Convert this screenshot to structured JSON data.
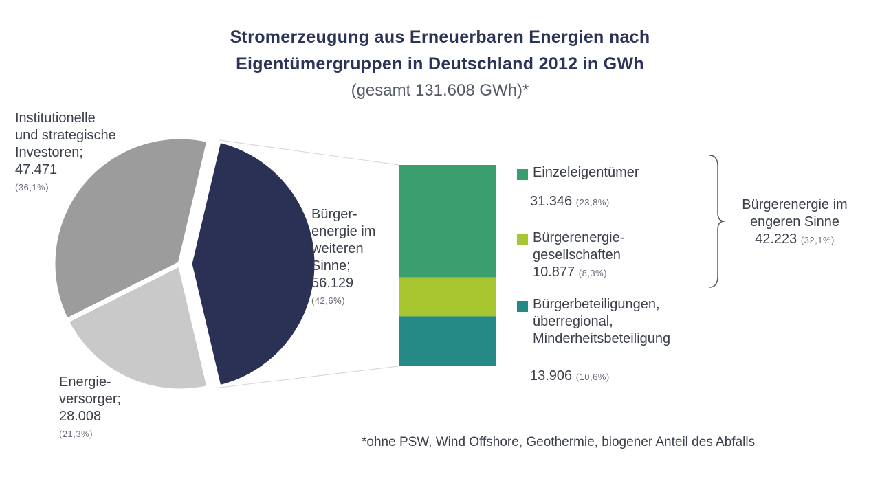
{
  "chart_data": {
    "type": "pie",
    "title_line1": "Stromerzeugung aus Erneuerbaren Energien nach",
    "title_line2": "Eigentümergruppen in Deutschland 2012 in GWh",
    "subtitle": "(gesamt 131.608 GWh)*",
    "footnote": "*ohne PSW, Wind Offshore, Geothermie, biogener Anteil des Abfalls",
    "pie": [
      {
        "label_lines": [
          "Institutionelle",
          "und strategische",
          "Investoren;"
        ],
        "value_text": "47.471",
        "value": 47471,
        "pct_text": "(36,1%)",
        "pct": 36.1,
        "color": "#9c9c9c"
      },
      {
        "label_lines": [
          "Bürger-",
          "energie im",
          "weiteren",
          "Sinne;"
        ],
        "value_text": "56.129",
        "value": 56129,
        "pct_text": "(42,6%)",
        "pct": 42.6,
        "color": "#2b3154"
      },
      {
        "label_lines": [
          "Energie-",
          "versorger;"
        ],
        "value_text": "28.008",
        "value": 28008,
        "pct_text": "(21,3%)",
        "pct": 21.3,
        "color": "#c9c9c9"
      }
    ],
    "breakdown": [
      {
        "label_lines": [
          "Einzeleigentümer"
        ],
        "value_text": "31.346",
        "value": 31346,
        "pct_text": "(23,8%)",
        "pct": 23.8,
        "color": "#3a9e6e"
      },
      {
        "label_lines": [
          "Bürgerenergie-",
          "gesellschaften"
        ],
        "value_text": "10.877",
        "value": 10877,
        "pct_text": "(8,3%)",
        "pct": 8.3,
        "color": "#a8c630"
      },
      {
        "label_lines": [
          "Bürgerbeteiligungen,",
          "überregional,",
          "Minderheitsbeteiligung"
        ],
        "value_text": "13.906",
        "value": 13906,
        "pct_text": "(10,6%)",
        "pct": 10.6,
        "color": "#258a85"
      }
    ],
    "bracket": {
      "label_lines": [
        "Bürgerenergie im",
        "engeren Sinne"
      ],
      "value_text": "42.223",
      "value": 42223,
      "pct_text": "(32,1%)",
      "pct": 32.1
    }
  }
}
